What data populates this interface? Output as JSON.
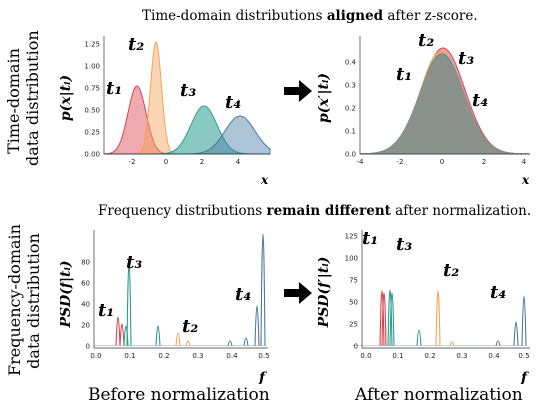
{
  "top_title_pre": "Time-domain distributions ",
  "top_title_bold": "aligned",
  "top_title_post": " after z-score.",
  "bottom_title_pre": "Frequency distributions ",
  "bottom_title_bold": "remain different",
  "bottom_title_post": " after normalization.",
  "row_label_time_1": "Time-domain",
  "row_label_time_2": "data distribution",
  "row_label_freq_1": "Frequency-domain",
  "row_label_freq_2": "data distribution",
  "caption_before": "Before normalization",
  "caption_after": "After normalization",
  "panel_time_before": {
    "ylabel": "p(x|tᵢ)",
    "xlabel": "x",
    "yticks": [
      "0.00",
      "0.25",
      "0.50",
      "0.75",
      "1.00",
      "1.25"
    ],
    "xticks": [
      "-2",
      "0",
      "2",
      "4"
    ],
    "labels": [
      "t₁",
      "t₂",
      "t₃",
      "t₄"
    ]
  },
  "panel_time_after": {
    "ylabel": "p(x′|tᵢ)",
    "xlabel": "x",
    "yticks": [
      "0.0",
      "0.1",
      "0.2",
      "0.3",
      "0.4"
    ],
    "xticks": [
      "-4",
      "-2",
      "0",
      "2",
      "4"
    ],
    "labels": [
      "t₁",
      "t₂",
      "t₃",
      "t₄"
    ]
  },
  "panel_freq_before": {
    "ylabel": "PSD(f|tᵢ)",
    "xlabel": "f",
    "yticks": [
      "0",
      "20",
      "40",
      "60",
      "80"
    ],
    "xticks": [
      "0.0",
      "0.1",
      "0.2",
      "0.3",
      "0.4",
      "0.5"
    ],
    "labels": [
      "t₁",
      "t₂",
      "t₃",
      "t₄"
    ]
  },
  "panel_freq_after": {
    "ylabel": "PSD(f′|tᵢ)",
    "xlabel": "f",
    "yticks": [
      "0",
      "25",
      "50",
      "75",
      "100",
      "125"
    ],
    "xticks": [
      "0.0",
      "0.1",
      "0.2",
      "0.3",
      "0.4",
      "0.5"
    ],
    "labels": [
      "t₁",
      "t₂",
      "t₃",
      "t₄"
    ]
  },
  "colors": {
    "t1": "#d9434e",
    "t2": "#f4a259",
    "t3": "#2a9d8f",
    "t4": "#4a7aa3",
    "overlap": "#8b8f8c"
  },
  "arrow_icon": "right-arrow-icon"
}
